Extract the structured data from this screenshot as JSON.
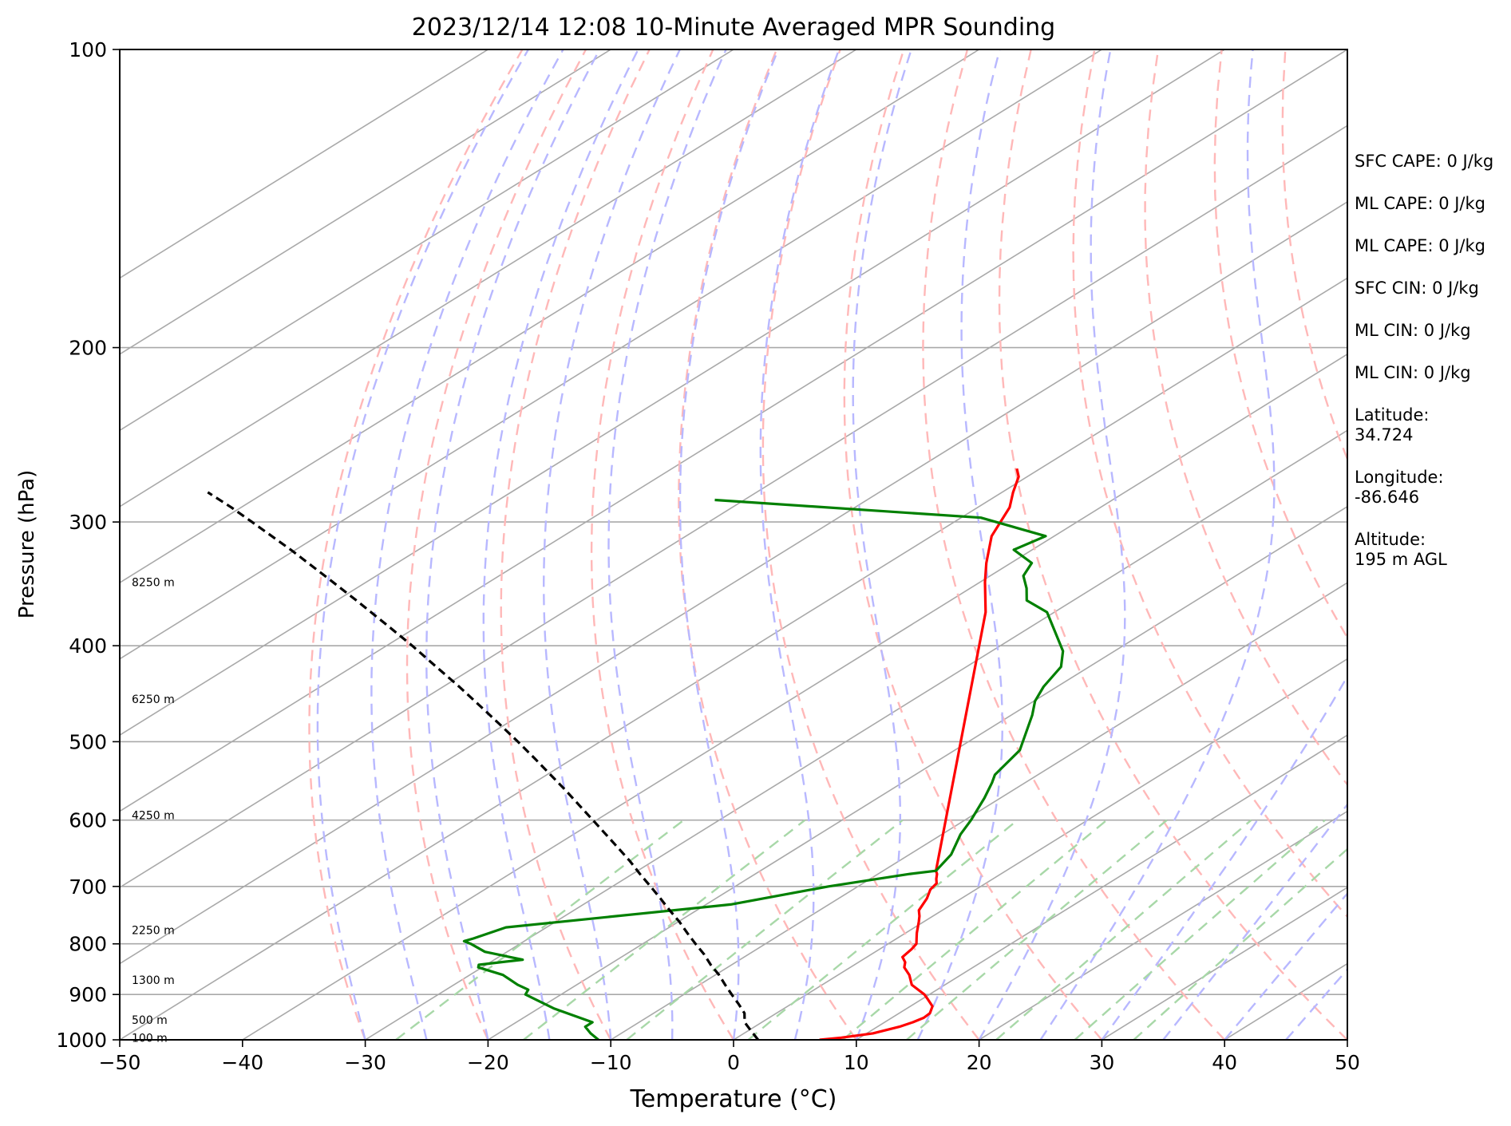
{
  "chart_data": {
    "type": "line",
    "title": "2023/12/14 12:08 10-Minute Averaged MPR Sounding",
    "xlabel": "Temperature (°C)",
    "ylabel": "Pressure (hPa)",
    "xlim": [
      -50,
      50
    ],
    "ylim": [
      1000,
      100
    ],
    "y_scale": "log",
    "skew": "temperature isotherms skewed to the right with height",
    "x_ticks": [
      -50,
      -40,
      -30,
      -20,
      -10,
      0,
      10,
      20,
      30,
      40,
      50
    ],
    "x_tick_labels": [
      "−50",
      "−40",
      "−30",
      "−20",
      "−10",
      "0",
      "10",
      "20",
      "30",
      "40",
      "50"
    ],
    "y_ticks": [
      1000,
      900,
      800,
      700,
      600,
      500,
      400,
      300,
      200,
      100
    ],
    "y_tick_labels": [
      "1000",
      "900",
      "800",
      "700",
      "600",
      "500",
      "400",
      "300",
      "200",
      "100"
    ],
    "grid": true,
    "background_lines": {
      "isotherms_color": "#a9a9a9",
      "dry_adiabats_color": "#ffb8b8",
      "moist_adiabats_color": "#b8b8ff",
      "mixing_ratio_color": "#a8d8a8",
      "mixing_ratio_top_hpa": 600,
      "mixing_ratio_surface_temps": [
        -27.5,
        -17.1,
        -8.7,
        1.2,
        8.9,
        14.1,
        21.4,
        27.8,
        32.6
      ]
    },
    "height_labels": [
      {
        "pressure": 345,
        "text": "8250 m"
      },
      {
        "pressure": 453,
        "text": "6250 m"
      },
      {
        "pressure": 593,
        "text": "4250 m"
      },
      {
        "pressure": 775,
        "text": "2250 m"
      },
      {
        "pressure": 870,
        "text": "1300 m"
      },
      {
        "pressure": 955,
        "text": "500 m"
      },
      {
        "pressure": 995,
        "text": "100 m"
      }
    ],
    "series": [
      {
        "color": "#ff0000",
        "pressure": [
          1000,
          995,
          985,
          970,
          960,
          950,
          940,
          925,
          910,
          900,
          880,
          860,
          845,
          835,
          825,
          810,
          800,
          790,
          780,
          760,
          750,
          740,
          720,
          705,
          695,
          688,
          680,
          675,
          370,
          345,
          330,
          310,
          290,
          280,
          270,
          265
        ],
        "temperature": [
          7,
          8.5,
          10.5,
          11.8,
          12.3,
          12.6,
          12.5,
          11.8,
          10.5,
          9.6,
          7.3,
          5.8,
          4.4,
          3.8,
          2.9,
          2.6,
          2.3,
          1.6,
          0.9,
          -0.4,
          -1.1,
          -1.9,
          -2.8,
          -3.7,
          -4.0,
          -4.6,
          -5.2,
          -5.7,
          -35.6,
          -39.6,
          -42.0,
          -45.1,
          -47.4,
          -49.1,
          -50.7,
          -51.9
        ]
      },
      {
        "color": "#008000",
        "pressure": [
          1000,
          985,
          970,
          960,
          930,
          900,
          890,
          880,
          860,
          845,
          840,
          830,
          815,
          800,
          795,
          790,
          770,
          730,
          700,
          680,
          675,
          650,
          620,
          600,
          570,
          550,
          540,
          510,
          470,
          455,
          440,
          420,
          405,
          370,
          360,
          350,
          340,
          330,
          320,
          310,
          297,
          285
        ],
        "temperature": [
          -11.0,
          -12.5,
          -13.8,
          -13.8,
          -18.7,
          -22.9,
          -23.3,
          -24.8,
          -27.3,
          -30.3,
          -30.6,
          -27.7,
          -31.8,
          -34.0,
          -34.9,
          -34.5,
          -33.3,
          -18.0,
          -12.4,
          -7.4,
          -5.7,
          -6.6,
          -8.5,
          -9.5,
          -11.3,
          -12.7,
          -13.5,
          -14.7,
          -18.3,
          -19.9,
          -21.1,
          -22.3,
          -24.2,
          -30.6,
          -33.8,
          -35.4,
          -37.3,
          -38.3,
          -41.5,
          -40.7,
          -48.4,
          -72.4
        ]
      },
      {
        "color": "#000000",
        "dashed": true,
        "pressure": [
          1000,
          980,
          960,
          940,
          920,
          900,
          880,
          860,
          840,
          820,
          800,
          780,
          760,
          740,
          720,
          700,
          680,
          660,
          640,
          620,
          600,
          580,
          560,
          540,
          520,
          500,
          480,
          460,
          440,
          420,
          400,
          380,
          360,
          340,
          320,
          300,
          290,
          280
        ],
        "temperature": [
          2.0,
          0.3,
          -1.4,
          -2.6,
          -4.3,
          -6.1,
          -7.9,
          -9.7,
          -11.7,
          -13.6,
          -15.7,
          -17.8,
          -19.9,
          -22.2,
          -24.5,
          -26.9,
          -29.4,
          -31.9,
          -34.6,
          -37.4,
          -40.3,
          -43.3,
          -46.4,
          -49.7,
          -53.1,
          -56.7,
          -60.5,
          -64.5,
          -68.7,
          -73.2,
          -77.9,
          -83.0,
          -88.4,
          -94.2,
          -100.4,
          -107.2,
          -110.8,
          -114.7
        ]
      }
    ]
  },
  "stats": [
    {
      "label": "SFC CAPE: 0 J/kg"
    },
    {
      "label": "ML CAPE: 0 J/kg"
    },
    {
      "label": "ML CAPE: 0 J/kg"
    },
    {
      "label": "SFC CIN: 0 J/kg"
    },
    {
      "label": "ML CIN: 0 J/kg"
    },
    {
      "label": "ML CIN: 0 J/kg"
    },
    {
      "label": "Latitude:",
      "value": "34.724"
    },
    {
      "label": "Longitude:",
      "value": "-86.646"
    },
    {
      "label": "Altitude:",
      "value": "195 m AGL"
    }
  ]
}
